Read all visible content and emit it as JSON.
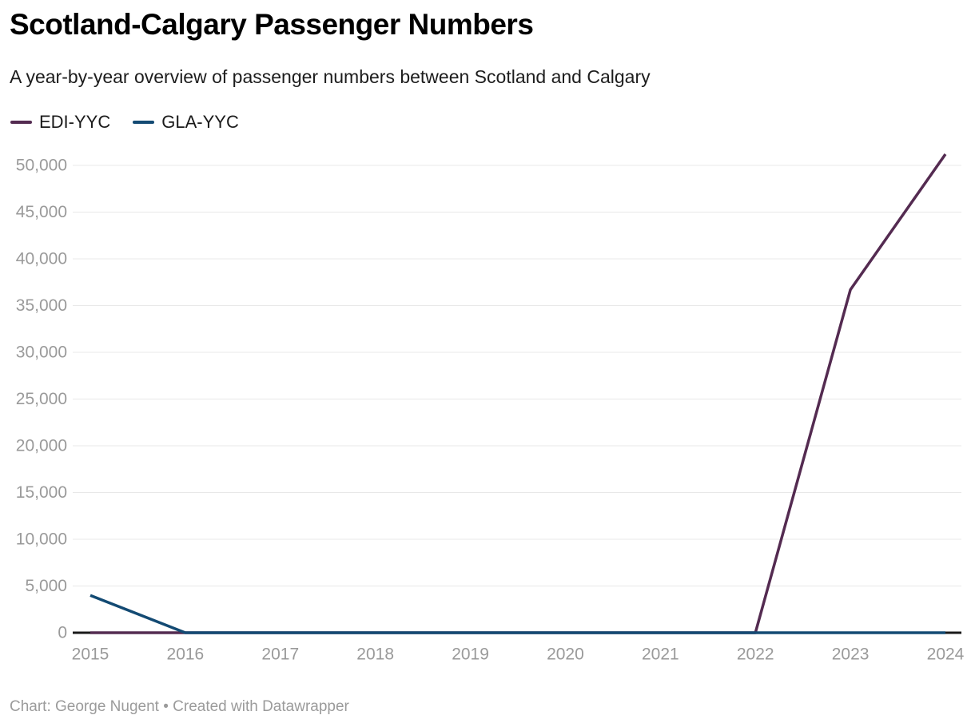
{
  "header": {
    "title": "Scotland-Calgary Passenger Numbers",
    "subtitle": "A year-by-year overview of passenger numbers between Scotland and Calgary"
  },
  "legend": {
    "items": [
      {
        "label": "EDI-YYC",
        "color": "#542b51"
      },
      {
        "label": "GLA-YYC",
        "color": "#134a73"
      }
    ]
  },
  "footer": {
    "text": "Chart: George Nugent • Created with Datawrapper"
  },
  "colors": {
    "gridline": "#e8e8e8",
    "axis_line": "#1a1a1a",
    "tick_label": "#9a9a9a",
    "series_edi": "#542b51",
    "series_gla": "#134a73"
  },
  "chart_data": {
    "type": "line",
    "title": "Scotland-Calgary Passenger Numbers",
    "subtitle": "A year-by-year overview of passenger numbers between Scotland and Calgary",
    "x": [
      2015,
      2016,
      2017,
      2018,
      2019,
      2020,
      2021,
      2022,
      2023,
      2024
    ],
    "series": [
      {
        "name": "EDI-YYC",
        "color": "#542b51",
        "values": [
          0,
          0,
          0,
          0,
          0,
          0,
          0,
          0,
          36700,
          51200
        ]
      },
      {
        "name": "GLA-YYC",
        "color": "#134a73",
        "values": [
          4000,
          0,
          0,
          0,
          0,
          0,
          0,
          0,
          0,
          0
        ]
      }
    ],
    "xlabel": "",
    "ylabel": "",
    "ylim": [
      0,
      50000
    ],
    "ytick_step": 5000,
    "ytick_labels": [
      "0",
      "5,000",
      "10,000",
      "15,000",
      "20,000",
      "25,000",
      "30,000",
      "35,000",
      "40,000",
      "45,000",
      "50,000"
    ],
    "grid": true,
    "legend_position": "top-left"
  }
}
